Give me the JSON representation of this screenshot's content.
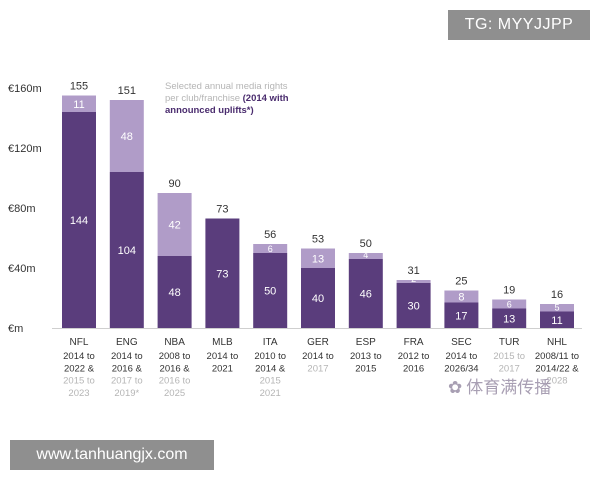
{
  "watermark_top": "TG: MYYJJPP",
  "watermark_bottom": "www.tanhuangjx.com",
  "watermark_logo": "体育满传播",
  "colors": {
    "dark": "#5a3d7c",
    "light": "#b09cc8",
    "text_dark": "#333333",
    "text_gray": "#b5b5b5",
    "highlight": "#4a2c6e"
  },
  "chart_data": {
    "type": "bar",
    "stacked": true,
    "title_lines": [
      {
        "text": "Selected annual media rights",
        "style": "faded"
      },
      {
        "text": "per club/franchise ",
        "style": "faded",
        "extra": "(2014 with",
        "extra_style": "bold"
      },
      {
        "text": "announced uplifts*)",
        "style": "bold"
      }
    ],
    "y_ticks": [
      "€160m",
      "€120m",
      "€80m",
      "€40m",
      "€m"
    ],
    "ylim": [
      0,
      160
    ],
    "categories": [
      "NFL",
      "ENG",
      "NBA",
      "MLB",
      "ITA",
      "GER",
      "ESP",
      "FRA",
      "SEC",
      "TUR",
      "NHL"
    ],
    "category_sublabels": [
      [
        {
          "t": "2014 to",
          "g": false
        },
        {
          "t": "2022 &",
          "g": false
        },
        {
          "t": "2015 to",
          "g": true
        },
        {
          "t": "2023",
          "g": true
        }
      ],
      [
        {
          "t": "2014 to",
          "g": false
        },
        {
          "t": "2016 &",
          "g": false
        },
        {
          "t": "2017 to",
          "g": true
        },
        {
          "t": "2019*",
          "g": true
        }
      ],
      [
        {
          "t": "2008 to",
          "g": false
        },
        {
          "t": "2016 &",
          "g": false
        },
        {
          "t": "2016 to",
          "g": true
        },
        {
          "t": "2025",
          "g": true
        }
      ],
      [
        {
          "t": "2014 to",
          "g": false
        },
        {
          "t": "2021",
          "g": false
        }
      ],
      [
        {
          "t": "2010 to",
          "g": false
        },
        {
          "t": "2014 &",
          "g": false
        },
        {
          "t": "2015",
          "g": true
        },
        {
          "t": "2021",
          "g": true
        }
      ],
      [
        {
          "t": "2014 to",
          "g": false
        },
        {
          "t": "2017",
          "g": true
        }
      ],
      [
        {
          "t": "2013 to",
          "g": false
        },
        {
          "t": "2015",
          "g": false
        }
      ],
      [
        {
          "t": "2012 to",
          "g": false
        },
        {
          "t": "2016",
          "g": false
        }
      ],
      [
        {
          "t": "2014 to",
          "g": false
        },
        {
          "t": "2026/34",
          "g": false
        }
      ],
      [
        {
          "t": "2015 to",
          "g": true
        },
        {
          "t": "2017",
          "g": true
        }
      ],
      [
        {
          "t": "2008/11 to",
          "g": false
        },
        {
          "t": "2014/22 &",
          "g": false
        },
        {
          "t": "2028",
          "g": true
        }
      ]
    ],
    "series": [
      {
        "name": "",
        "values": [
          144,
          104,
          48,
          73,
          50,
          40,
          46,
          30,
          17,
          13,
          11
        ]
      },
      {
        "name": "",
        "values": [
          11,
          48,
          42,
          0,
          6,
          13,
          4,
          2,
          8,
          6,
          5
        ]
      }
    ],
    "totals": [
      155,
      151,
      90,
      73,
      56,
      53,
      50,
      31,
      25,
      19,
      16
    ]
  }
}
